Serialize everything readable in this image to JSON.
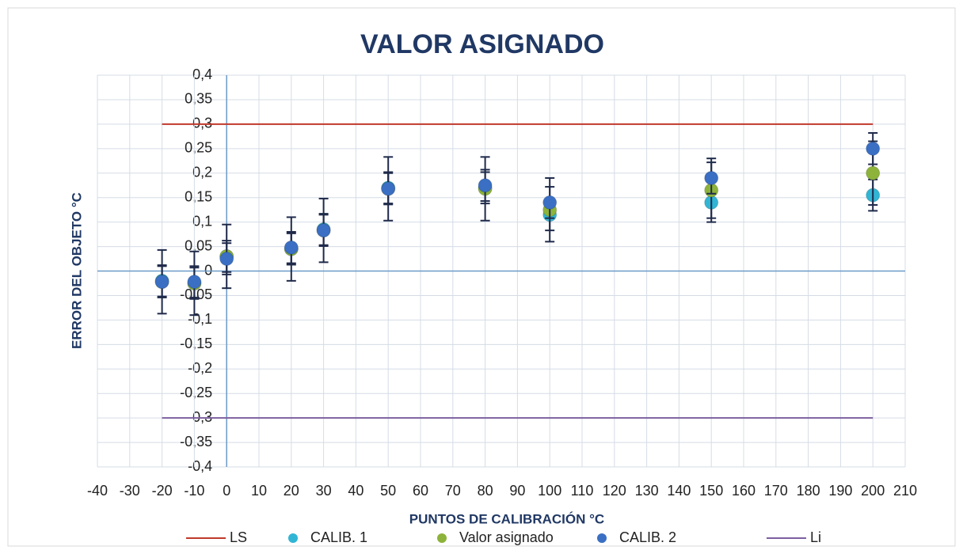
{
  "chart_data": {
    "type": "scatter",
    "title": "VALOR ASIGNADO",
    "xlabel": "PUNTOS DE CALIBRACIÓN °C",
    "ylabel": "ERROR DEL OBJETO °C",
    "xlim": [
      -40,
      210
    ],
    "ylim": [
      -0.4,
      0.4
    ],
    "xticks": [
      -40,
      -30,
      -20,
      -10,
      0,
      10,
      20,
      30,
      40,
      50,
      60,
      70,
      80,
      90,
      100,
      110,
      120,
      130,
      140,
      150,
      160,
      170,
      180,
      190,
      200,
      210
    ],
    "yticks": [
      {
        "value": -0.4,
        "label": "-0,4"
      },
      {
        "value": -0.35,
        "label": "-0,35"
      },
      {
        "value": -0.3,
        "label": "-0,3"
      },
      {
        "value": -0.25,
        "label": "-0,25"
      },
      {
        "value": -0.2,
        "label": "-0,2"
      },
      {
        "value": -0.15,
        "label": "-0,15"
      },
      {
        "value": -0.1,
        "label": "-0,1"
      },
      {
        "value": -0.05,
        "label": "-0,05"
      },
      0,
      {
        "value": 0.05,
        "label": "0,05"
      },
      {
        "value": 0.1,
        "label": "0,1"
      },
      {
        "value": 0.15,
        "label": "0,15"
      },
      {
        "value": 0.2,
        "label": "0,2"
      },
      {
        "value": 0.25,
        "label": "0,25"
      },
      {
        "value": 0.3,
        "label": "0,3"
      },
      {
        "value": 0.35,
        "label": "0,35"
      },
      {
        "value": 0.4,
        "label": "0,4"
      }
    ],
    "grid": true,
    "legend": "bottom",
    "series": [
      {
        "name": "LS",
        "type": "line",
        "color": "#c0392b",
        "x": [
          -20,
          200
        ],
        "values": [
          0.3,
          0.3
        ]
      },
      {
        "name": "CALIB. 1",
        "type": "scatter",
        "color": "#31b5d4",
        "x": [
          -20,
          -10,
          0,
          20,
          30,
          50,
          80,
          100,
          150,
          200
        ],
        "values": [
          -0.02,
          -0.025,
          0.03,
          0.045,
          0.085,
          0.17,
          0.17,
          0.115,
          0.14,
          0.155
        ],
        "errors": [
          0.032,
          0.032,
          0.032,
          0.032,
          0.032,
          0.032,
          0.032,
          0.032,
          0.032,
          0.032
        ]
      },
      {
        "name": "Valor asignado",
        "type": "scatter",
        "color": "#8db33a",
        "x": [
          -20,
          -10,
          0,
          20,
          30,
          50,
          80,
          100,
          150,
          200
        ],
        "values": [
          -0.022,
          -0.025,
          0.03,
          0.045,
          0.083,
          0.168,
          0.168,
          0.125,
          0.165,
          0.2
        ],
        "errors": [
          0.065,
          0.065,
          0.065,
          0.065,
          0.065,
          0.065,
          0.065,
          0.065,
          0.065,
          0.065
        ]
      },
      {
        "name": "CALIB. 2",
        "type": "scatter",
        "color": "#3a6fc4",
        "x": [
          -20,
          -10,
          0,
          20,
          30,
          50,
          80,
          100,
          150,
          200
        ],
        "values": [
          -0.022,
          -0.022,
          0.025,
          0.048,
          0.083,
          0.168,
          0.175,
          0.14,
          0.19,
          0.25
        ],
        "errors": [
          0.032,
          0.032,
          0.032,
          0.032,
          0.032,
          0.032,
          0.032,
          0.032,
          0.032,
          0.032
        ]
      },
      {
        "name": "Li",
        "type": "line",
        "color": "#7d5fa0",
        "x": [
          -20,
          200
        ],
        "values": [
          -0.3,
          -0.3
        ]
      }
    ]
  }
}
